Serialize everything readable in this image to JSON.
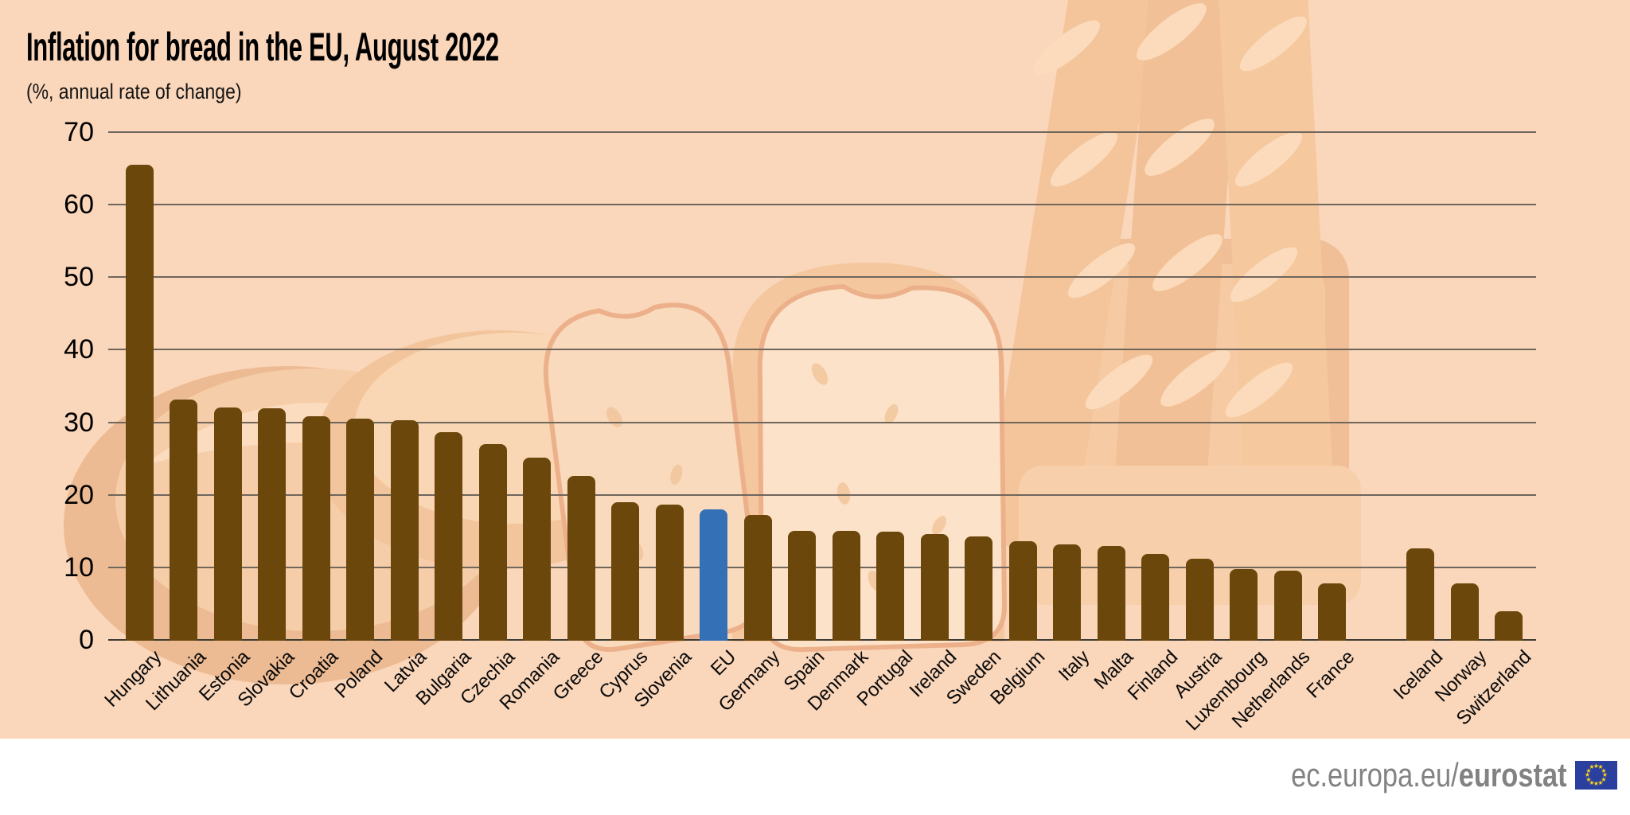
{
  "header": {
    "title": "Inflation for bread in the EU, August 2022",
    "subtitle": "(%, annual rate of change)"
  },
  "chart_data": {
    "type": "bar",
    "title": "Inflation for bread in the EU, August 2022",
    "subtitle": "(%, annual rate of change)",
    "unit": "%",
    "categories": [
      "Hungary",
      "Lithuania",
      "Estonia",
      "Slovakia",
      "Croatia",
      "Poland",
      "Latvia",
      "Bulgaria",
      "Czechia",
      "Romania",
      "Greece",
      "Cyprus",
      "Slovenia",
      "EU",
      "Germany",
      "Spain",
      "Denmark",
      "Portugal",
      "Ireland",
      "Sweden",
      "Belgium",
      "Italy",
      "Malta",
      "Finland",
      "Austria",
      "Luxembourg",
      "Netherlands",
      "France",
      "Iceland",
      "Norway",
      "Switzerland"
    ],
    "values": [
      65.5,
      33.1,
      32.0,
      31.9,
      30.8,
      30.5,
      30.3,
      28.6,
      27.0,
      25.1,
      22.6,
      19.0,
      18.6,
      18.0,
      17.2,
      15.0,
      15.0,
      14.9,
      14.6,
      14.3,
      13.6,
      13.2,
      12.9,
      11.9,
      11.2,
      9.8,
      9.5,
      7.8,
      12.6,
      7.8,
      3.9
    ],
    "highlight_category": "EU",
    "group_break_before": "Iceland",
    "ylim": [
      0,
      70
    ],
    "yticks": [
      0,
      10,
      20,
      30,
      40,
      50,
      60,
      70
    ],
    "grid": true,
    "legend": "none",
    "bar_color": "#6b470b",
    "highlight_color": "#3470b6"
  },
  "footer": {
    "logo_prefix": "ec.europa.eu/",
    "logo_bold": "eurostat",
    "flag_icon": "eu-flag-icon"
  },
  "colors": {
    "background": "#fad6ba",
    "grid": "#6f665c",
    "axis": "#3e3a34",
    "text": "#000000",
    "footer_text": "#828282",
    "flag_blue": "#2a3f9e",
    "flag_star": "#ffd617"
  }
}
